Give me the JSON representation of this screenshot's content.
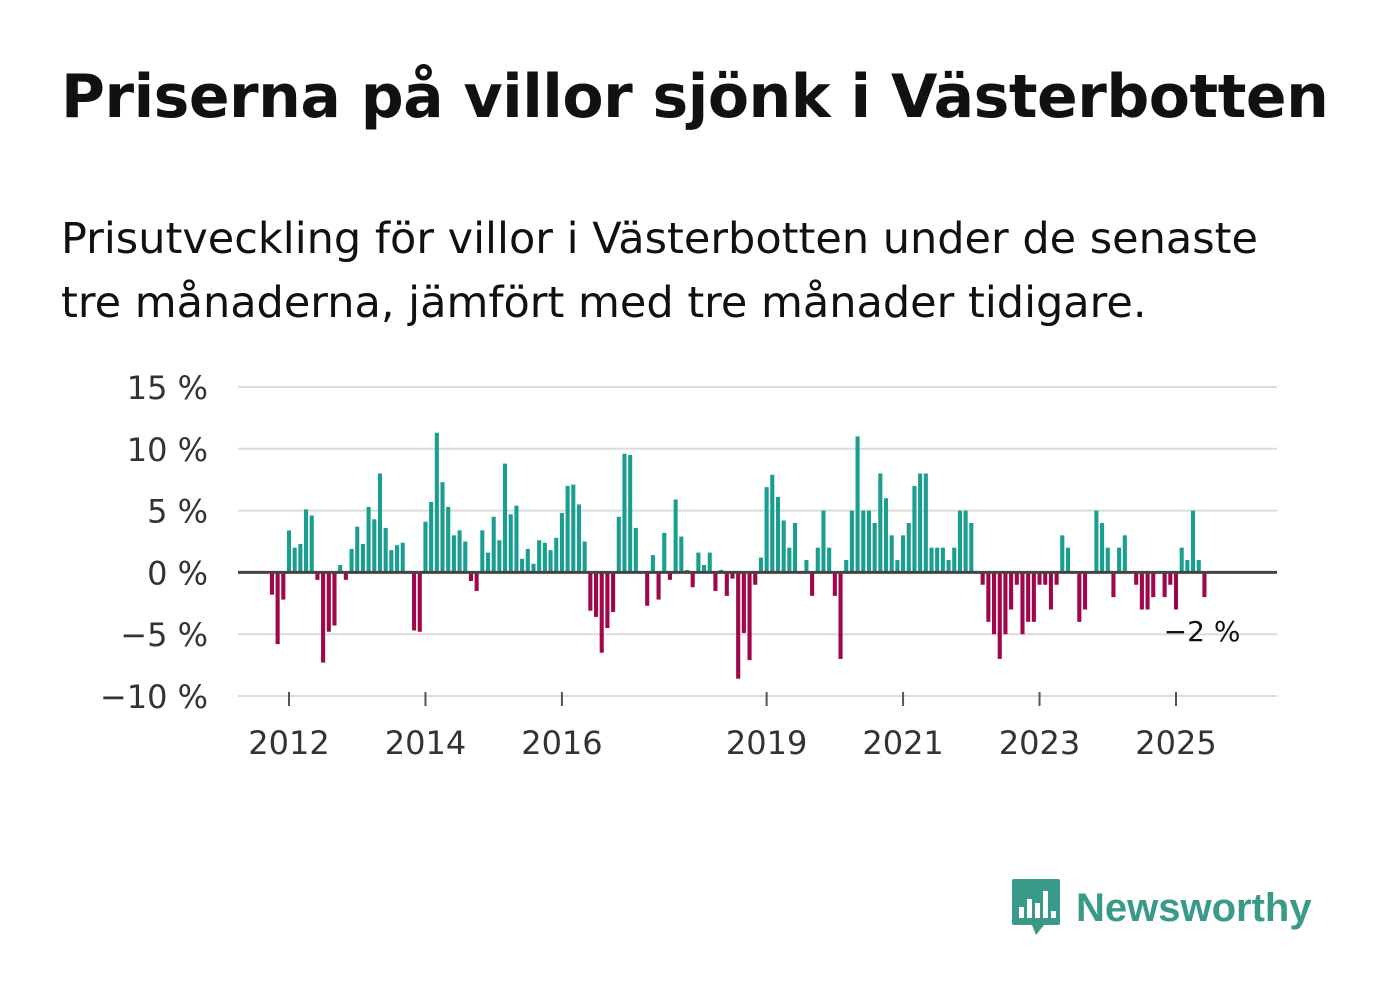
{
  "title": "Priserna på villor sjönk i Västerbotten",
  "subtitle": "Prisutveckling för villor i Västerbotten under de senaste tre månaderna, jämfört med tre månader tidigare.",
  "brand": {
    "name": "Newsworthy",
    "icon": "bar-chart-speech-bubble-icon",
    "color": "#3a9a8a"
  },
  "chart_data": {
    "type": "bar",
    "title": "Priserna på villor sjönk i Västerbotten",
    "xlabel": "",
    "ylabel": "",
    "ylim": [
      -10,
      15
    ],
    "y_ticks": [
      15,
      10,
      5,
      0,
      -5,
      -10
    ],
    "y_tick_labels": [
      "15 %",
      "10 %",
      "5 %",
      "0 %",
      "−5 %",
      "−10 %"
    ],
    "x_ticks": [
      2012,
      2014,
      2016,
      2019,
      2021,
      2023,
      2025
    ],
    "x_tick_labels": [
      "2012",
      "2014",
      "2016",
      "2019",
      "2021",
      "2023",
      "2025"
    ],
    "x_start": 2011.75,
    "x_step": 0.0833333,
    "positive_color": "#1a9e8f",
    "negative_color": "#a0064a",
    "grid": true,
    "annotation": {
      "text": "−2 %",
      "value": -2
    },
    "values": [
      -1.8,
      -5.8,
      -2.2,
      3.4,
      2.0,
      2.3,
      5.1,
      4.6,
      -0.6,
      -7.3,
      -4.8,
      -4.3,
      0.6,
      -0.6,
      1.9,
      3.7,
      2.3,
      5.3,
      4.3,
      8.0,
      3.6,
      1.8,
      2.2,
      2.4,
      0.0,
      -4.7,
      -4.8,
      4.1,
      5.7,
      11.3,
      7.3,
      5.3,
      3.0,
      3.4,
      2.5,
      -0.7,
      -1.5,
      3.4,
      1.6,
      4.5,
      2.6,
      8.8,
      4.7,
      5.4,
      1.1,
      1.9,
      0.7,
      2.6,
      2.4,
      1.8,
      2.8,
      4.8,
      7.0,
      7.1,
      5.5,
      2.5,
      -3.1,
      -3.6,
      -6.5,
      -4.5,
      -3.2,
      4.5,
      9.6,
      9.5,
      3.6,
      0.0,
      -2.7,
      1.4,
      -2.2,
      3.2,
      -0.6,
      5.9,
      2.9,
      0.2,
      -1.2,
      1.6,
      0.6,
      1.6,
      -1.5,
      0.2,
      -1.9,
      -0.5,
      -8.6,
      -4.9,
      -7.1,
      -1.0,
      1.2,
      6.9,
      7.9,
      6.1,
      4.2,
      2.0,
      4.0,
      0.0,
      1.0,
      -1.9,
      2.0,
      5.0,
      2.0,
      -1.9,
      -7.0,
      1.0,
      5.0,
      11.0,
      5.0,
      5.0,
      4.0,
      8.0,
      6.0,
      3.0,
      1.0,
      3.0,
      4.0,
      7.0,
      8.0,
      8.0,
      2.0,
      2.0,
      2.0,
      1.0,
      2.0,
      5.0,
      5.0,
      4.0,
      0.0,
      -1.0,
      -4.0,
      -5.0,
      -7.0,
      -5.0,
      -3.0,
      -1.0,
      -5.0,
      -4.0,
      -4.0,
      -1.0,
      -1.0,
      -3.0,
      -1.0,
      3.0,
      2.0,
      0.0,
      -4.0,
      -3.0,
      0.0,
      5.0,
      4.0,
      2.0,
      -2.0,
      2.0,
      3.0,
      0.0,
      -1.0,
      -3.0,
      -3.0,
      -2.0,
      0.0,
      -2.0,
      -1.0,
      -3.0,
      2.0,
      1.0,
      5.0,
      1.0,
      -2.0
    ]
  }
}
